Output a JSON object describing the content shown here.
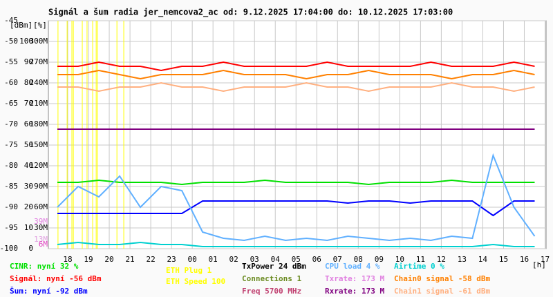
{
  "chart_data": {
    "type": "line",
    "title": "Signál a šum radia jer_nemcova2_ac od: 9.12.2025 17:04:00 do: 10.12.2025 17:03:00",
    "y_unit_label": "[dBm]",
    "y2_unit_label": "[%]",
    "x_unit_label": "[h]",
    "xlim": [
      17.067,
      41.05
    ],
    "xticks": [
      {
        "value": 18,
        "label": "18"
      },
      {
        "value": 19,
        "label": "19"
      },
      {
        "value": 20,
        "label": "20"
      },
      {
        "value": 21,
        "label": "21"
      },
      {
        "value": 22,
        "label": "22"
      },
      {
        "value": 23,
        "label": "23"
      },
      {
        "value": 24,
        "label": "00"
      },
      {
        "value": 25,
        "label": "01"
      },
      {
        "value": 26,
        "label": "02"
      },
      {
        "value": 27,
        "label": "03"
      },
      {
        "value": 28,
        "label": "04"
      },
      {
        "value": 29,
        "label": "05"
      },
      {
        "value": 30,
        "label": "06"
      },
      {
        "value": 31,
        "label": "07"
      },
      {
        "value": 32,
        "label": "08"
      },
      {
        "value": 33,
        "label": "09"
      },
      {
        "value": 34,
        "label": "10"
      },
      {
        "value": 35,
        "label": "11"
      },
      {
        "value": 36,
        "label": "12"
      },
      {
        "value": 37,
        "label": "13"
      },
      {
        "value": 38,
        "label": "14"
      },
      {
        "value": 39,
        "label": "15"
      },
      {
        "value": 40,
        "label": "16"
      },
      {
        "value": 41,
        "label": "17"
      }
    ],
    "ylim": [
      -100,
      -45
    ],
    "yticks": [
      -100,
      -95,
      -90,
      -85,
      -80,
      -75,
      -70,
      -65,
      -60,
      -55,
      -50,
      -45
    ],
    "y2lim": [
      0,
      110
    ],
    "y2ticks": [
      0,
      10,
      20,
      30,
      40,
      50,
      60,
      70,
      80,
      90,
      100
    ],
    "y3lim": [
      0,
      330
    ],
    "y3ticks": [
      {
        "value": 30,
        "label": "30M"
      },
      {
        "value": 60,
        "label": "60M"
      },
      {
        "value": 90,
        "label": "90M"
      },
      {
        "value": 120,
        "label": "120M"
      },
      {
        "value": 150,
        "label": "150M"
      },
      {
        "value": 180,
        "label": "180M"
      },
      {
        "value": 210,
        "label": "210M"
      },
      {
        "value": 240,
        "label": "240M"
      },
      {
        "value": 270,
        "label": "270M"
      },
      {
        "value": 300,
        "label": "300M"
      }
    ],
    "y3_annotations": [
      {
        "value": 39,
        "label": "39M",
        "color": "#e080e0"
      },
      {
        "value": 13,
        "label": "13M",
        "color": "#e0a0e0"
      },
      {
        "value": 6,
        "label": "6M",
        "color": "#e040c0"
      }
    ],
    "grid": true,
    "x": [
      17.5,
      18.5,
      19.5,
      20.5,
      21.5,
      22.5,
      23.5,
      24.5,
      25.5,
      26.5,
      27.5,
      28.5,
      29.5,
      30.5,
      31.5,
      32.5,
      33.5,
      34.5,
      35.5,
      36.5,
      37.5,
      38.5,
      39.5,
      40.5
    ],
    "series": [
      {
        "name": "Chain1 signal -61 dBm",
        "color": "#ffb080",
        "axis": "y",
        "values": [
          -61,
          -61,
          -62,
          -61,
          -61,
          -60,
          -61,
          -61,
          -62,
          -61,
          -61,
          -61,
          -60,
          -61,
          -61,
          -62,
          -61,
          -61,
          -61,
          -60,
          -61,
          -61,
          -62,
          -61
        ]
      },
      {
        "name": "Chain0 signal -58 dBm",
        "color": "#ff8000",
        "axis": "y",
        "values": [
          -58,
          -58,
          -57,
          -58,
          -59,
          -58,
          -58,
          -58,
          -57,
          -58,
          -58,
          -58,
          -59,
          -58,
          -58,
          -57,
          -58,
          -58,
          -58,
          -59,
          -58,
          -58,
          -57,
          -58
        ]
      },
      {
        "name": "Signál: nyní -56 dBm",
        "color": "#ff0000",
        "axis": "y",
        "values": [
          -56,
          -56,
          -55,
          -56,
          -56,
          -57,
          -56,
          -56,
          -55,
          -56,
          -56,
          -56,
          -56,
          -55,
          -56,
          -56,
          -56,
          -56,
          -55,
          -56,
          -56,
          -56,
          -55,
          -56
        ]
      },
      {
        "name": "CINR: nyní 32 %",
        "color": "#00e000",
        "axis": "y2",
        "values": [
          32,
          32,
          33,
          32,
          32,
          32,
          31,
          32,
          32,
          32,
          33,
          32,
          32,
          32,
          32,
          31,
          32,
          32,
          32,
          33,
          32,
          32,
          32,
          32
        ]
      },
      {
        "name": "Šum: nyní -92 dBm",
        "color": "#0000ff",
        "axis": "y",
        "values": [
          -91.5,
          -91.5,
          -91.5,
          -91.5,
          -91.5,
          -91.5,
          -91.5,
          -88.5,
          -88.5,
          -88.5,
          -88.5,
          -88.5,
          -88.5,
          -88.5,
          -89,
          -88.5,
          -88.5,
          -89,
          -88.5,
          -88.5,
          -88.5,
          -92,
          -88.5,
          -88.5
        ]
      },
      {
        "name": "CPU load 4 %",
        "color": "#60b0ff",
        "axis": "y2",
        "values": [
          20,
          30,
          25,
          35,
          20,
          30,
          28,
          8,
          5,
          4,
          6,
          4,
          5,
          4,
          6,
          5,
          4,
          5,
          4,
          6,
          5,
          45,
          20,
          6
        ]
      },
      {
        "name": "Airtime 0 %",
        "color": "#00d0d0",
        "axis": "y2",
        "values": [
          2,
          3,
          2,
          2,
          3,
          2,
          2,
          1,
          1,
          1,
          1,
          1,
          1,
          1,
          1,
          1,
          1,
          1,
          1,
          1,
          1,
          2,
          1,
          1
        ]
      },
      {
        "name": "Rxrate: 173 M",
        "color": "#800080",
        "axis": "y3",
        "values": [
          173,
          173,
          173,
          173,
          173,
          173,
          173,
          173,
          173,
          173,
          173,
          173,
          173,
          173,
          173,
          173,
          173,
          173,
          173,
          173,
          173,
          173,
          173,
          173
        ]
      }
    ],
    "event_lines": {
      "name": "ETH Plug 1",
      "color": "#ffff00",
      "x": [
        17.53,
        17.97,
        18.2,
        18.27,
        18.7,
        18.93,
        19.2,
        19.37,
        19.43,
        20.37,
        20.7
      ]
    },
    "legend_extra": [
      {
        "text": "ETH Speed 100",
        "color": "#ffff00"
      },
      {
        "text": "TxPower 24 dBm",
        "color": "#000000"
      },
      {
        "text": "Connections 1",
        "color": "#6a8a20"
      },
      {
        "text": "Freq 5700 MHz",
        "color": "#c04070"
      },
      {
        "text": "Txrate: 173 M",
        "color": "#e080e0"
      }
    ]
  }
}
